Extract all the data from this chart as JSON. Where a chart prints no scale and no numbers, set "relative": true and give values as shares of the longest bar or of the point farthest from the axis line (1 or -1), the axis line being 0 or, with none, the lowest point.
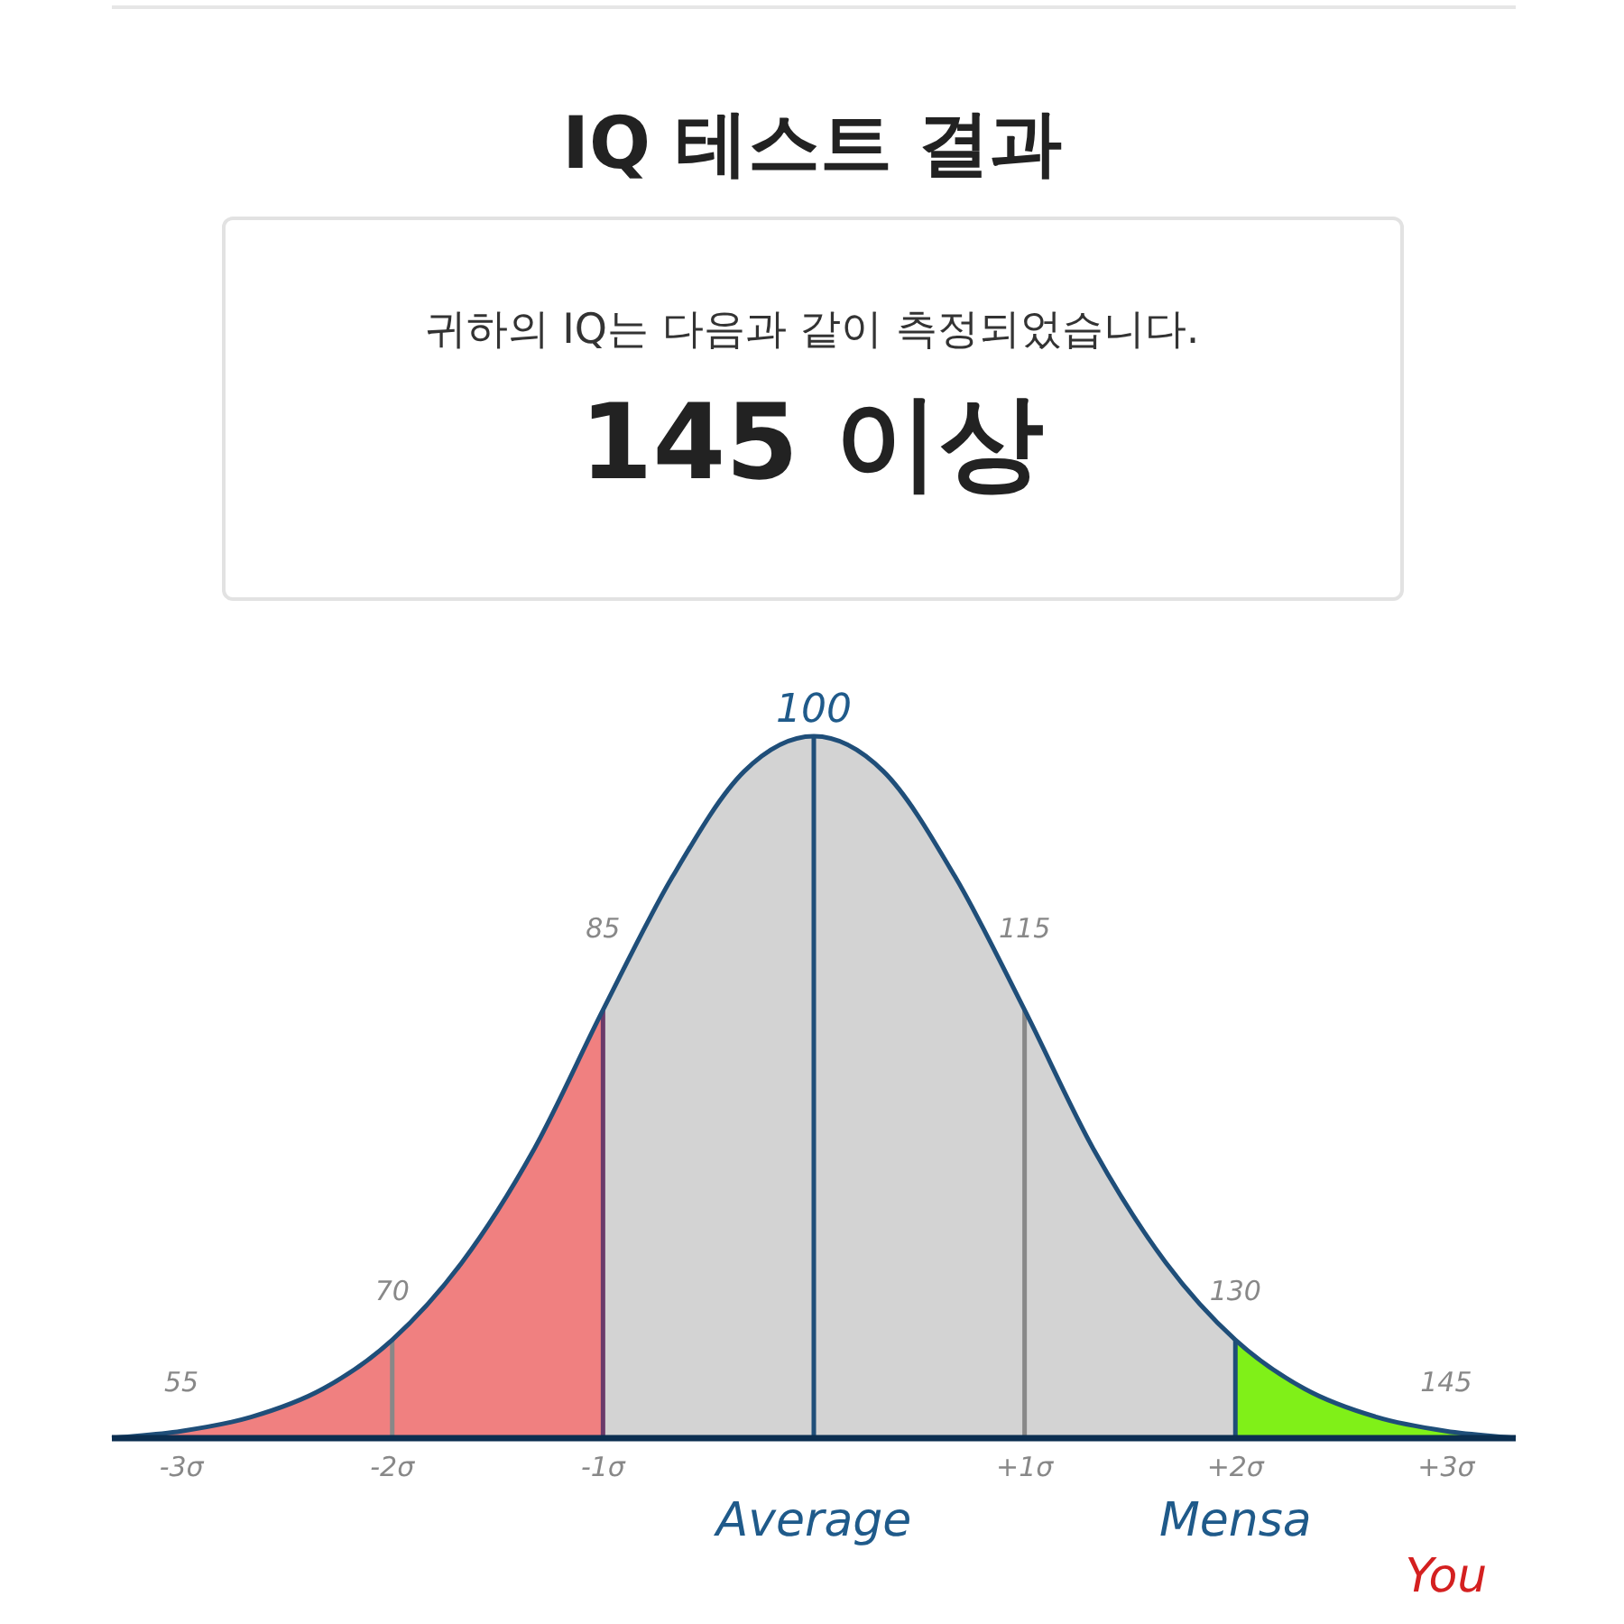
{
  "chart_data": {
    "type": "area",
    "relative": true,
    "title": "IQ 테스트 결과",
    "subtitle": "귀하의 IQ는 다음과 같이 측정되었습니다.",
    "xlim": [
      -3.33,
      3.33
    ],
    "xticks": [
      {
        "value": -3,
        "label": "-3σ"
      },
      {
        "value": -2,
        "label": "-2σ"
      },
      {
        "value": -1,
        "label": "-1σ"
      },
      {
        "value": 1,
        "label": "+1σ"
      },
      {
        "value": 2,
        "label": "+2σ"
      },
      {
        "value": 3,
        "label": "+3σ"
      }
    ],
    "series": [
      {
        "color": "#f08080",
        "x": [
          -3.33,
          -3,
          -2.67,
          -2.33,
          -2,
          -1.67,
          -1.33,
          -1
        ],
        "values": [
          0,
          0.01,
          0.03,
          0.07,
          0.14,
          0.25,
          0.41,
          0.61
        ]
      },
      {
        "color": "#d3d3d3",
        "x": [
          -1,
          -0.67,
          -0.33,
          0,
          0.33,
          0.67,
          1,
          1.33,
          1.67,
          2
        ],
        "values": [
          0.61,
          0.8,
          0.95,
          1,
          0.95,
          0.8,
          0.61,
          0.41,
          0.25,
          0.14
        ]
      },
      {
        "color": "#80f018",
        "x": [
          2,
          2.33,
          2.67,
          3,
          3.33
        ],
        "values": [
          0.14,
          0.07,
          0.03,
          0.01,
          0
        ]
      },
      {
        "type": "line",
        "color": "#1f4e79",
        "x": [
          -3.33,
          -3,
          -2.67,
          -2.33,
          -2,
          -1.67,
          -1.33,
          -1,
          -0.67,
          -0.33,
          0,
          0.33,
          0.67,
          1,
          1.33,
          1.67,
          2,
          2.33,
          2.67,
          3,
          3.33
        ],
        "values": [
          0,
          0.01,
          0.03,
          0.07,
          0.14,
          0.25,
          0.41,
          0.61,
          0.8,
          0.95,
          1,
          0.95,
          0.8,
          0.61,
          0.41,
          0.25,
          0.14,
          0.07,
          0.03,
          0.01,
          0
        ]
      }
    ],
    "ref_lines": [
      {
        "axis": "x",
        "value": -2,
        "color": "#888888"
      },
      {
        "axis": "x",
        "value": -1,
        "color": "#6a3a6a"
      },
      {
        "axis": "x",
        "value": 0,
        "color": "#1f4e79"
      },
      {
        "axis": "x",
        "value": 1,
        "color": "#888888"
      },
      {
        "axis": "x",
        "value": 2,
        "color": "#1f4e79"
      }
    ],
    "annotations": [
      "145 이상",
      {
        "text": "55",
        "x": -3,
        "y": 0.01
      },
      {
        "text": "70",
        "x": -2,
        "y": 0.14
      },
      {
        "text": "85",
        "x": -1,
        "y": 0.61
      },
      {
        "text": "100",
        "x": 0,
        "y": 1
      },
      {
        "text": "115",
        "x": 1,
        "y": 0.61
      },
      {
        "text": "130",
        "x": 2,
        "y": 0.14
      },
      {
        "text": "145",
        "x": 3,
        "y": 0.01
      },
      {
        "text": "Average",
        "x": 0,
        "y": 0
      },
      {
        "text": "Mensa",
        "x": 2,
        "y": 0
      },
      {
        "text": "You",
        "x": 3,
        "y": 0
      }
    ]
  }
}
